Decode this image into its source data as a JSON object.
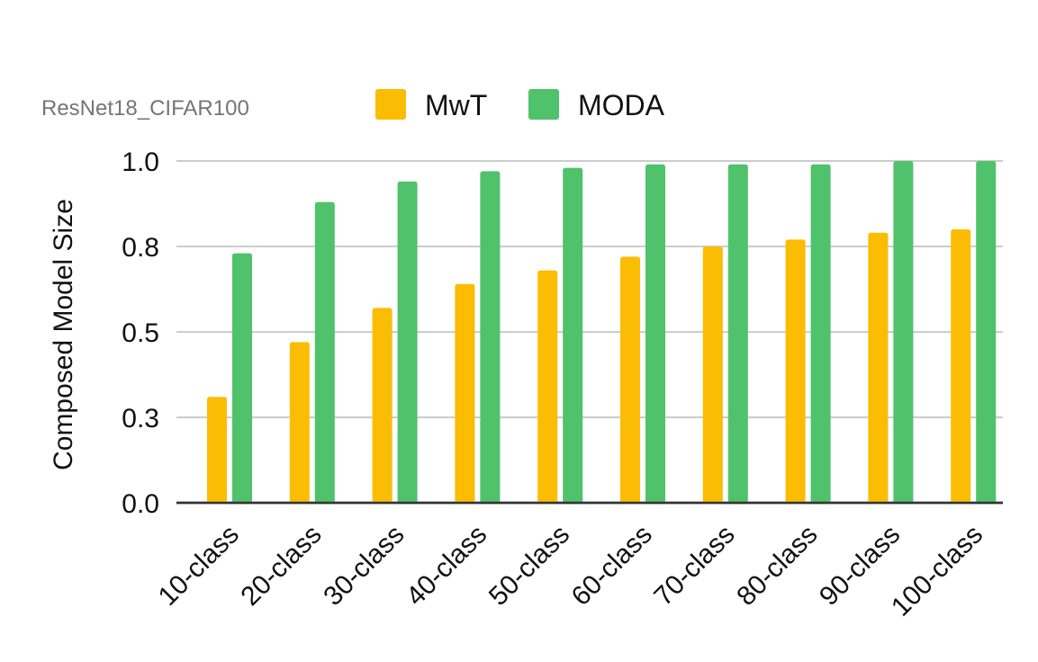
{
  "chart_data": {
    "type": "bar",
    "title": "",
    "subtitle": "ResNet18_CIFAR100",
    "xlabel": "",
    "ylabel": "Composed Model Size",
    "categories": [
      "10-class",
      "20-class",
      "30-class",
      "40-class",
      "50-class",
      "60-class",
      "70-class",
      "80-class",
      "90-class",
      "100-class"
    ],
    "series": [
      {
        "name": "MwT",
        "color": "#fbbc04",
        "values": [
          0.31,
          0.47,
          0.57,
          0.64,
          0.68,
          0.72,
          0.75,
          0.77,
          0.79,
          0.8
        ]
      },
      {
        "name": "MODA",
        "color": "#4fc26b",
        "values": [
          0.73,
          0.88,
          0.94,
          0.97,
          0.98,
          0.99,
          0.99,
          0.99,
          1.0,
          1.0
        ]
      }
    ],
    "yticks": [
      0.0,
      0.25,
      0.5,
      0.75,
      1.0
    ],
    "ytick_labels": [
      "0.0",
      "0.3",
      "0.5",
      "0.8",
      "1.0"
    ],
    "ylim": [
      0,
      1.0
    ],
    "grid": true,
    "legend_position": "top"
  }
}
